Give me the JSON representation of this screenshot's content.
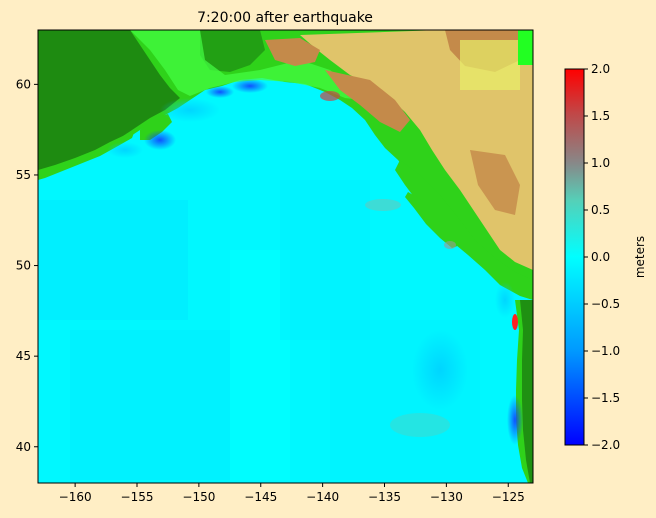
{
  "title": "7:20:00 after earthquake",
  "colorbar": {
    "label": "meters",
    "range": [
      -2.0,
      2.0
    ],
    "ticks": [
      "2.0",
      "1.5",
      "1.0",
      "0.5",
      "0.0",
      "−0.5",
      "−1.0",
      "−1.5",
      "−2.0"
    ],
    "tick_values": [
      2.0,
      1.5,
      1.0,
      0.5,
      0.0,
      -0.5,
      -1.0,
      -1.5,
      -2.0
    ],
    "colors": {
      "min": "#0000ff",
      "low": "#0099ff",
      "zero": "#00ffff",
      "mid": "#66c9b0",
      "high_mid": "#888888",
      "max": "#ff0000"
    }
  },
  "map": {
    "xlim": [
      -163,
      -123
    ],
    "ylim": [
      38,
      63
    ],
    "x_ticks": [
      "−160",
      "−155",
      "−150",
      "−145",
      "−140",
      "−135",
      "−130",
      "−125"
    ],
    "x_tick_values": [
      -160,
      -155,
      -150,
      -145,
      -140,
      -135,
      -130,
      -125
    ],
    "y_ticks": [
      "60",
      "55",
      "50",
      "45",
      "40"
    ],
    "y_tick_values": [
      60,
      55,
      50,
      45,
      40
    ],
    "colors": {
      "ocean": "#00f8ff",
      "lowland": "#2fd21a",
      "forest": "#1b7f10",
      "bright_green": "#44ff44",
      "highland": "#e0c46a",
      "mountain": "#c48a4a",
      "peak": "#ffffff",
      "wave_low": "#1060ff",
      "wave_high": "#cc3333"
    }
  }
}
